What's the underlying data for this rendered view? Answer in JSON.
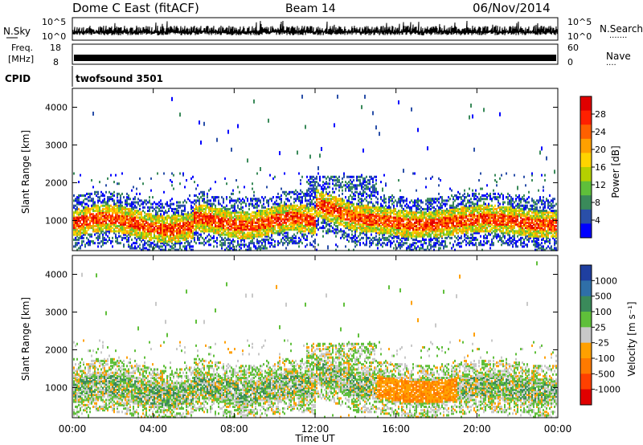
{
  "header": {
    "title": "Dome C East (fitACF)",
    "beam": "Beam 14",
    "date": "06/Nov/2014"
  },
  "top_panels": {
    "nsky_label": "N.Sky",
    "nsky_top_tick": "10^5",
    "nsky_bottom_tick": "10^0",
    "nsearch_label": "N.Search",
    "nsearch_top_tick": "10^5",
    "nsearch_bottom_tick": "10^0",
    "freq_label": "Freq.",
    "freq_unit": "[MHz]",
    "freq_top_tick": "18",
    "freq_bottom_tick": "8",
    "nave_label": "Nave",
    "nave_top_tick": "60",
    "nave_bottom_tick": "0",
    "cpid_label": "CPID",
    "cpid_value": "twofsound 3501"
  },
  "colors": {
    "power": [
      "#0000ff",
      "#2a4fa8",
      "#3a8a5a",
      "#5fbf3a",
      "#b5d000",
      "#ffd400",
      "#ffa000",
      "#ff6000",
      "#ff2000",
      "#e00000"
    ],
    "velocity": [
      "#1f3fa0",
      "#2f6fa8",
      "#3a8a5a",
      "#5fbf3a",
      "#c8c8c8",
      "#ffa000",
      "#ff7a00",
      "#ff4000",
      "#e00000"
    ]
  },
  "chart_data": [
    {
      "type": "heatmap",
      "name": "power",
      "ylabel": "Slant Range [km]",
      "yticks": [
        "1000",
        "2000",
        "3000",
        "4000"
      ],
      "ylim": [
        200,
        4500
      ],
      "xlim_hours": [
        0,
        24
      ],
      "colorbar_label": "Power [dB]",
      "colorbar_ticks": [
        "4",
        "8",
        "12",
        "16",
        "20",
        "24",
        "28"
      ],
      "colorbar_range": [
        0,
        32
      ]
    },
    {
      "type": "heatmap",
      "name": "velocity",
      "ylabel": "Slant Range [km]",
      "yticks": [
        "1000",
        "2000",
        "3000",
        "4000"
      ],
      "ylim": [
        200,
        4500
      ],
      "xlim_hours": [
        0,
        24
      ],
      "colorbar_label": "Velocity [m s⁻¹]",
      "colorbar_ticks": [
        "1000",
        "500",
        "100",
        "25",
        "-25",
        "-100",
        "-500",
        "-1000"
      ]
    }
  ],
  "xaxis": {
    "ticks": [
      "00:00",
      "04:00",
      "08:00",
      "12:00",
      "16:00",
      "20:00",
      "00:00"
    ],
    "label": "Time UT"
  }
}
